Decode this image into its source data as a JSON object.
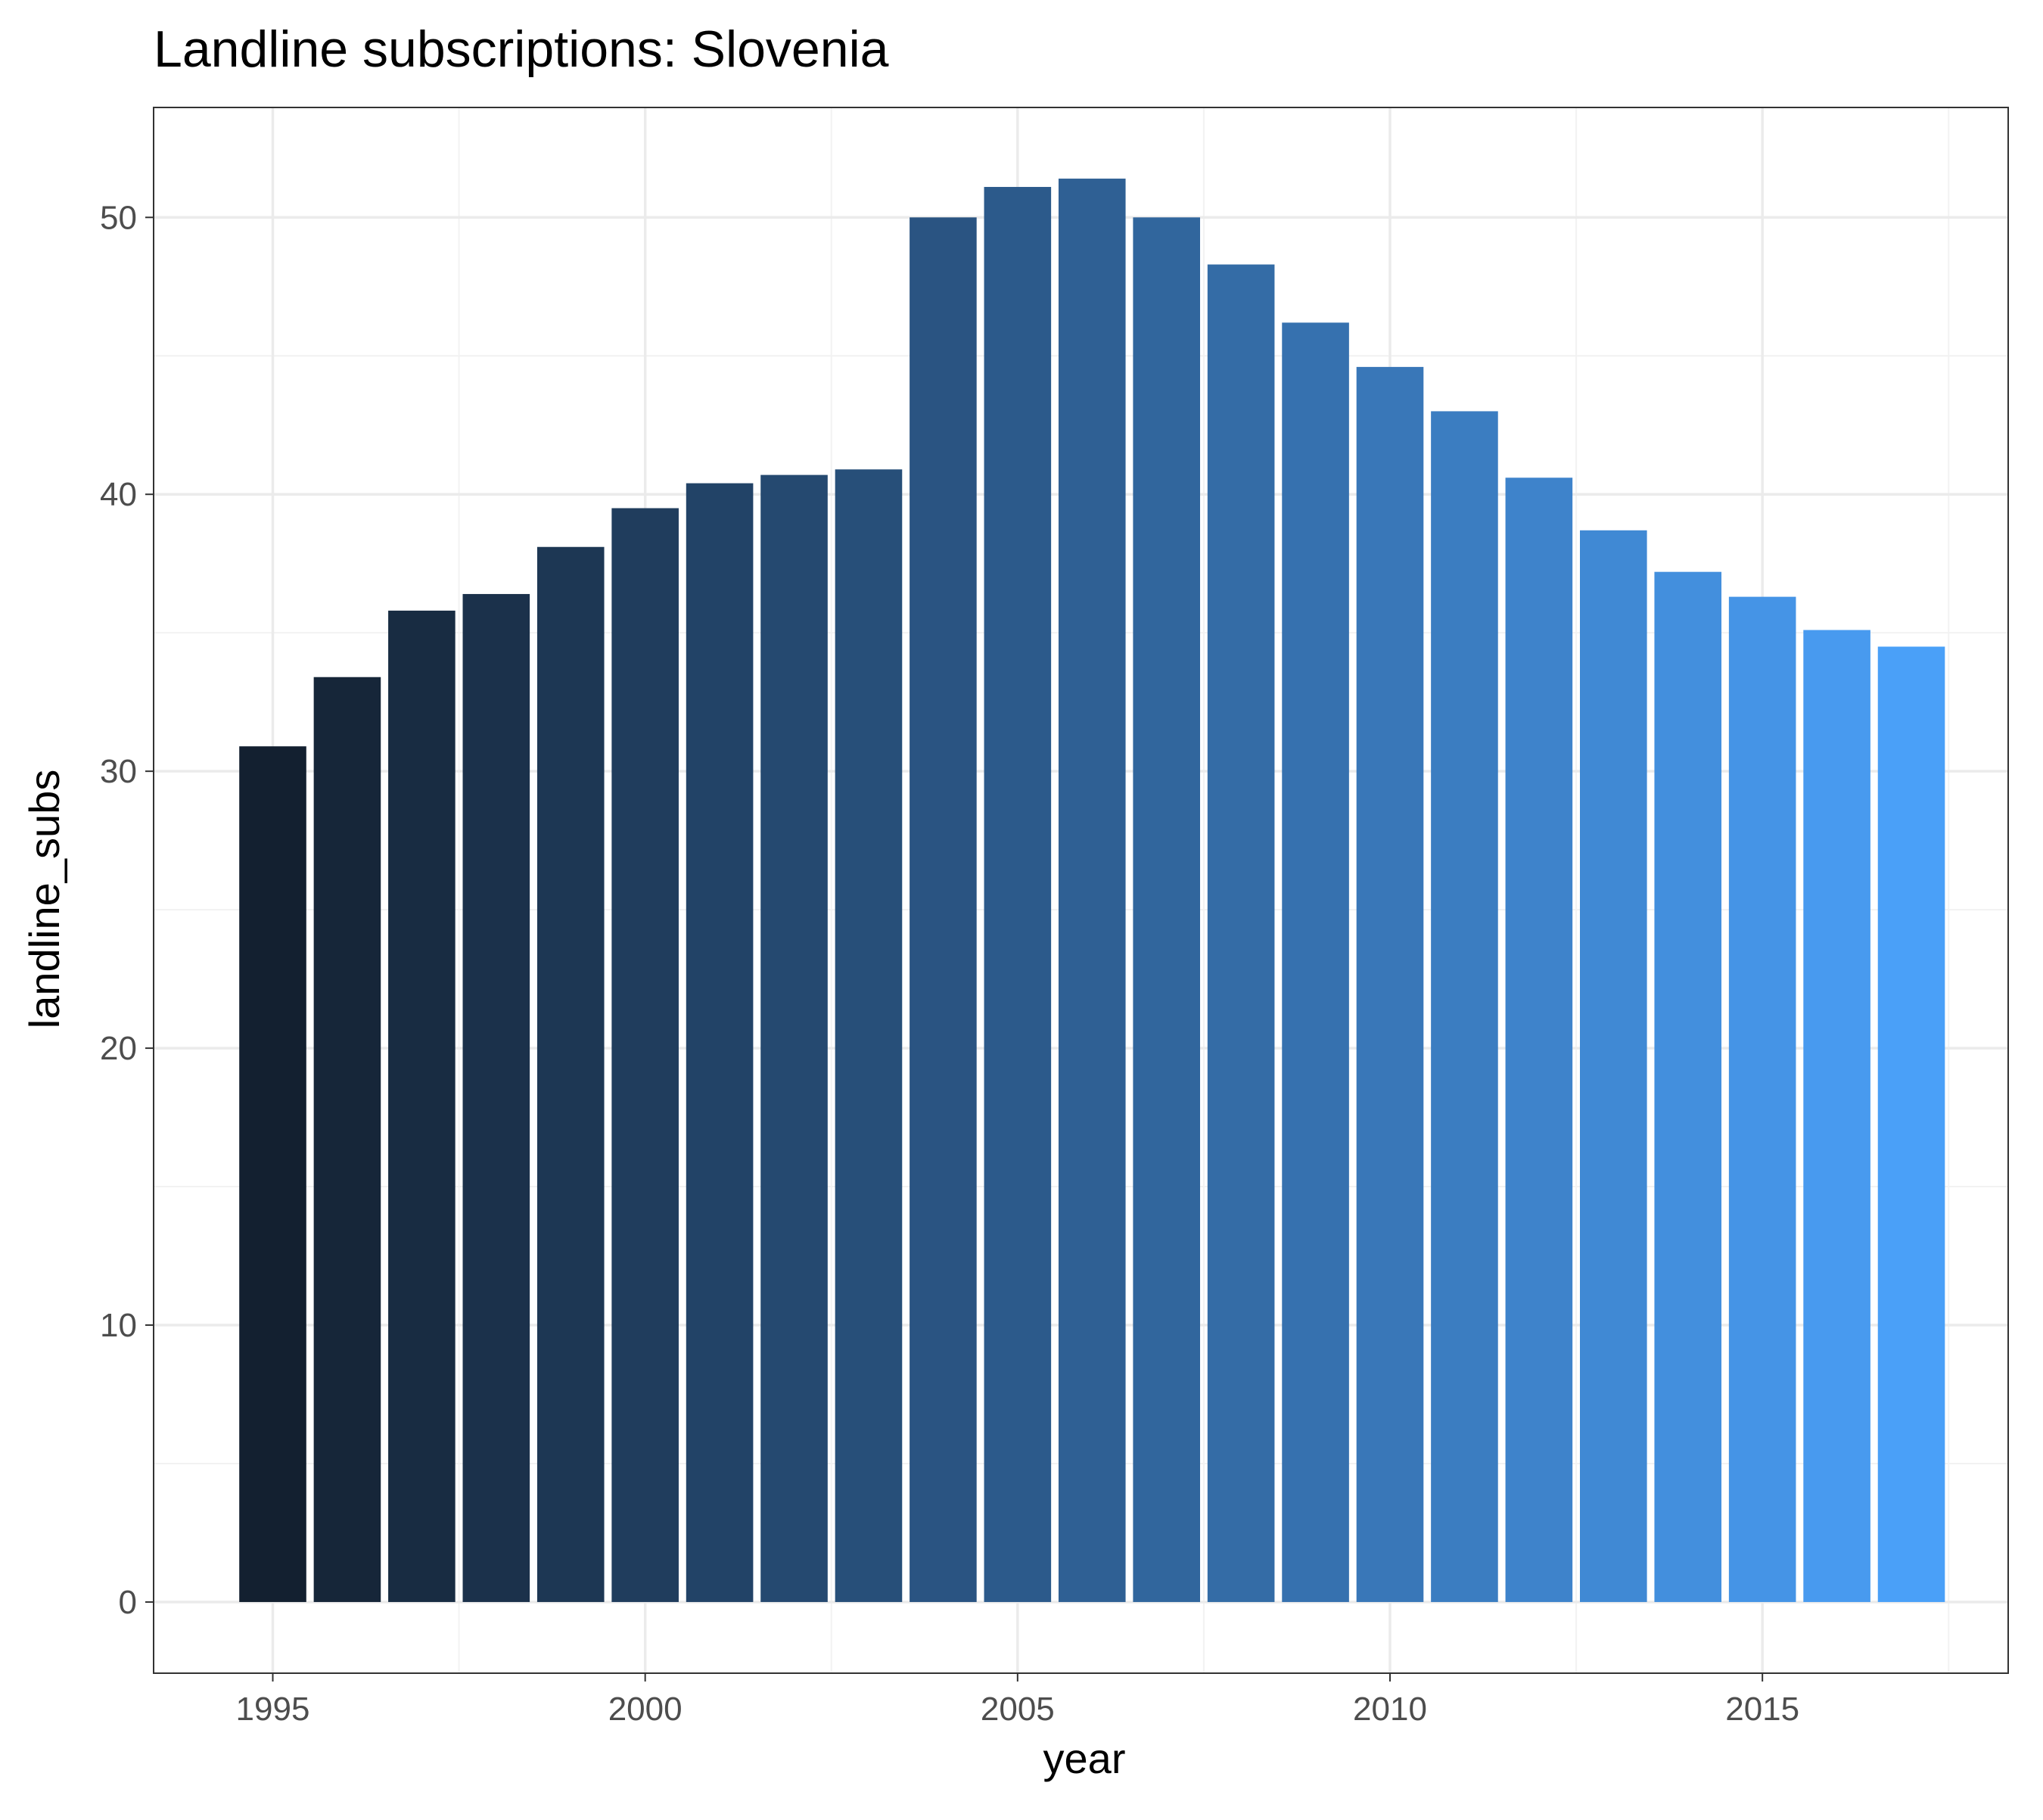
{
  "chart_data": {
    "type": "bar",
    "title": "Landline subscriptions: Slovenia",
    "xlabel": "year",
    "ylabel": "landline_subs",
    "x": [
      1995,
      1996,
      1997,
      1998,
      1999,
      2000,
      2001,
      2002,
      2003,
      2004,
      2005,
      2006,
      2007,
      2008,
      2009,
      2010,
      2011,
      2012,
      2013,
      2014,
      2015,
      2016,
      2017
    ],
    "values": [
      30.9,
      33.4,
      35.8,
      36.4,
      38.1,
      39.5,
      40.4,
      40.7,
      40.9,
      50.0,
      51.1,
      51.4,
      50.0,
      48.3,
      46.2,
      44.6,
      43.0,
      40.6,
      38.7,
      37.2,
      36.3,
      35.1,
      34.5
    ],
    "xlim": [
      1993.4,
      2018.3
    ],
    "ylim": [
      -2.57,
      53.97
    ],
    "x_ticks": [
      1995,
      2000,
      2005,
      2010,
      2015
    ],
    "x_tick_labels": [
      "1995",
      "2000",
      "2005",
      "2010",
      "2015"
    ],
    "y_ticks": [
      0,
      10,
      20,
      30,
      40,
      50
    ],
    "y_tick_labels": [
      "0",
      "10",
      "20",
      "30",
      "40",
      "50"
    ],
    "bar_width": 0.9,
    "fill_gradient": {
      "from": "#132030",
      "to": "#4aa0f8"
    },
    "grid": true,
    "legend": "none",
    "colors": {
      "background": "#ffffff",
      "grid_major": "#ebebeb",
      "grid_minor": "#f2f2f2",
      "panel_border": "#333333",
      "tick_text": "#4d4d4d",
      "title_text": "#000000"
    }
  }
}
